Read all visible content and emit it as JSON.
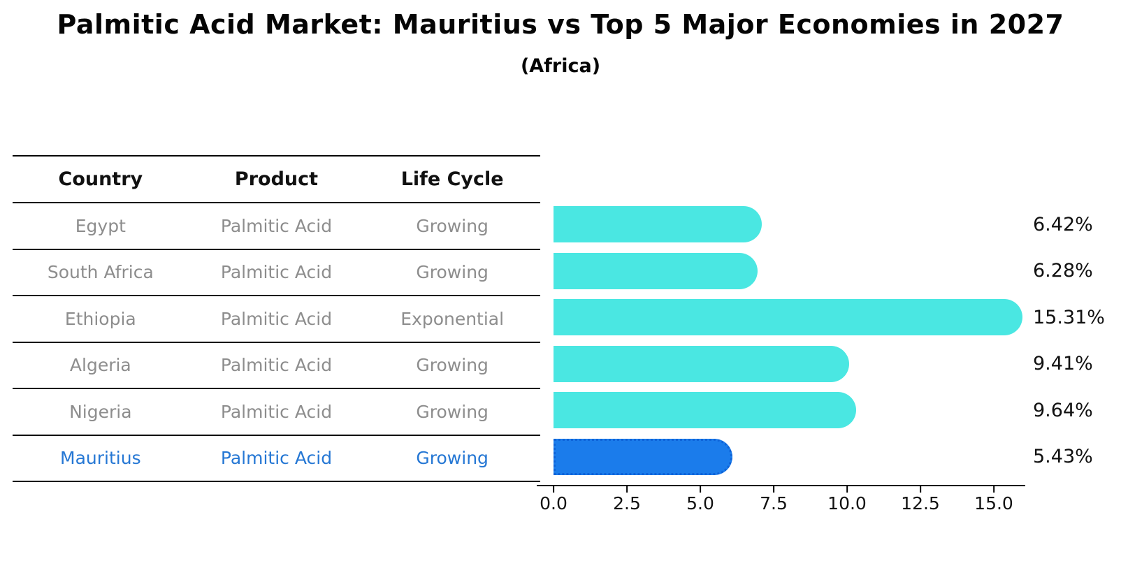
{
  "title": "Palmitic Acid Market: Mauritius vs Top 5 Major Economies in 2027",
  "subtitle": "(Africa)",
  "table": {
    "headers": [
      "Country",
      "Product",
      "Life Cycle"
    ],
    "rows": [
      {
        "country": "Egypt",
        "product": "Palmitic Acid",
        "life_cycle": "Growing",
        "highlight": false
      },
      {
        "country": "South Africa",
        "product": "Palmitic Acid",
        "life_cycle": "Growing",
        "highlight": false
      },
      {
        "country": "Ethiopia",
        "product": "Palmitic Acid",
        "life_cycle": "Exponential",
        "highlight": false
      },
      {
        "country": "Algeria",
        "product": "Palmitic Acid",
        "life_cycle": "Growing",
        "highlight": false
      },
      {
        "country": "Nigeria",
        "product": "Palmitic Acid",
        "life_cycle": "Growing",
        "highlight": false
      },
      {
        "country": "Mauritius",
        "product": "Palmitic Acid",
        "life_cycle": "Growing",
        "highlight": true
      }
    ]
  },
  "chart_data": {
    "type": "bar",
    "orientation": "horizontal",
    "title": "Palmitic Acid Market: Mauritius vs Top 5 Major Economies in 2027",
    "subtitle": "(Africa)",
    "categories": [
      "Egypt",
      "South Africa",
      "Ethiopia",
      "Algeria",
      "Nigeria",
      "Mauritius"
    ],
    "values": [
      6.42,
      6.28,
      15.31,
      9.41,
      9.64,
      5.43
    ],
    "value_labels": [
      "6.42%",
      "6.28%",
      "15.31%",
      "9.41%",
      "9.64%",
      "5.43%"
    ],
    "xlabel": "",
    "ylabel": "",
    "xlim": [
      0,
      16.2
    ],
    "x_tick_labels": [
      "0.0",
      "2.5",
      "5.0",
      "7.5",
      "10.0",
      "12.5",
      "15.0"
    ],
    "grid": false,
    "legend": false,
    "colors": {
      "bar": "#4AE7E2",
      "highlight_bar": "#1B7CEB",
      "highlight_bar_border": "#0E63D8",
      "highlight_text": "#2577D4",
      "row_text": "#8D8D8D",
      "header_text": "#111111",
      "value_text": "#111111"
    }
  }
}
